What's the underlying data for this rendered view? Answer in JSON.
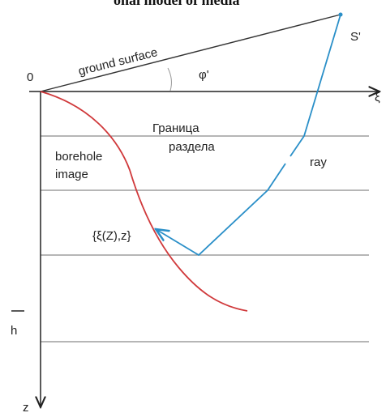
{
  "header": {
    "title": "onal model of media"
  },
  "labels": {
    "origin": "0",
    "ground_surface": "ground surface",
    "angle": "φ'",
    "source": "S'",
    "x_axis": "ξ",
    "boundary": [
      "Граница",
      "раздела"
    ],
    "borehole": [
      "borehole",
      "image"
    ],
    "ray": "ray",
    "point": "{ξ(Z),z}",
    "depth": "h",
    "z_axis": "z"
  }
}
